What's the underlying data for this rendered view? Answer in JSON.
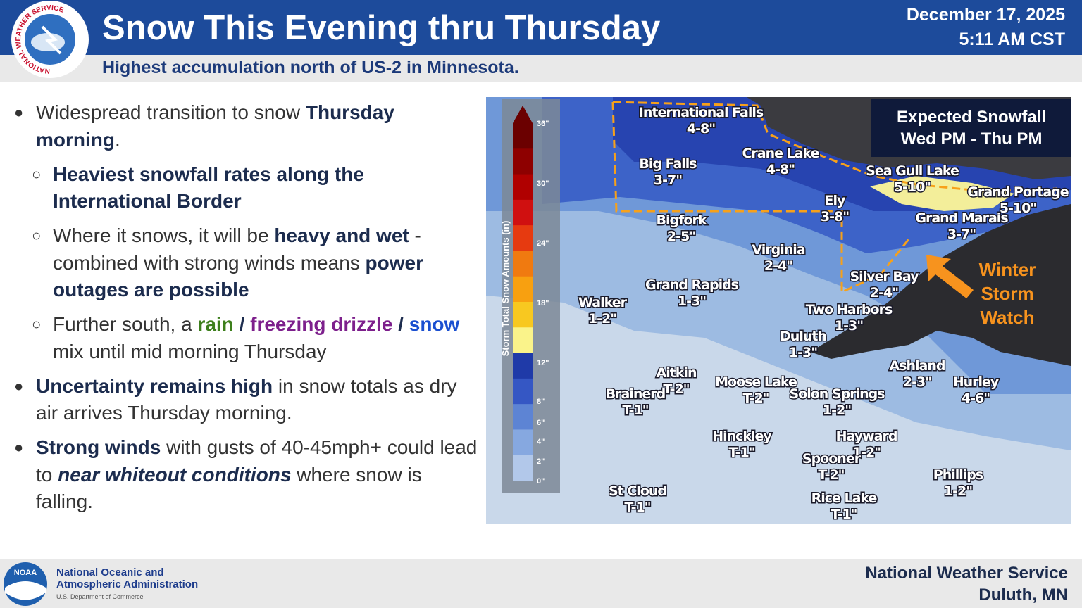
{
  "header": {
    "title": "Snow This Evening thru Thursday",
    "subtitle": "Highest accumulation north of US-2 in Minnesota.",
    "date": "December 17, 2025",
    "time": "5:11 AM CST",
    "logo_text": "NATIONAL WEATHER SERVICE"
  },
  "bullets": [
    {
      "level": 1,
      "segments": [
        {
          "text": "Widespread transition to snow ",
          "style": "normal"
        },
        {
          "text": "Thursday morning",
          "style": "bold"
        },
        {
          "text": ".",
          "style": "normal"
        }
      ]
    },
    {
      "level": 2,
      "segments": [
        {
          "text": "Heaviest snowfall rates along the International Border",
          "style": "bold"
        }
      ]
    },
    {
      "level": 2,
      "segments": [
        {
          "text": "Where it snows, it will be ",
          "style": "normal"
        },
        {
          "text": "heavy and wet",
          "style": "bold"
        },
        {
          "text": " - combined with strong winds means ",
          "style": "normal"
        },
        {
          "text": "power outages are possible",
          "style": "bold"
        }
      ]
    },
    {
      "level": 2,
      "segments": [
        {
          "text": "Further south, a ",
          "style": "normal"
        },
        {
          "text": "rain",
          "style": "bold",
          "color": "#3d7f1c"
        },
        {
          "text": " / ",
          "style": "bold"
        },
        {
          "text": "freezing drizzle",
          "style": "bold",
          "color": "#7d1f8c"
        },
        {
          "text": " / ",
          "style": "bold"
        },
        {
          "text": "snow",
          "style": "bold",
          "color": "#1a4fd0"
        },
        {
          "text": " mix until mid morning Thursday",
          "style": "normal"
        }
      ]
    },
    {
      "level": 1,
      "segments": [
        {
          "text": "Uncertainty remains high",
          "style": "bold"
        },
        {
          "text": " in snow totals as dry air arrives Thursday morning.",
          "style": "normal"
        }
      ]
    },
    {
      "level": 1,
      "segments": [
        {
          "text": "Strong winds",
          "style": "bold"
        },
        {
          "text": " with gusts of 40-45mph+ could lead to ",
          "style": "normal"
        },
        {
          "text": "near whiteout conditions",
          "style": "bold-italic"
        },
        {
          "text": " where snow is falling.",
          "style": "normal"
        }
      ]
    }
  ],
  "map": {
    "legend": [
      "Expected Snowfall",
      "Wed PM - Thu PM"
    ],
    "colorbar": {
      "label": "Storm Total Snow Amounts (in)",
      "ticks": [
        "36\"",
        "30\"",
        "24\"",
        "18\"",
        "12\"",
        "8\"",
        "6\"",
        "4\"",
        "2\"",
        "0\""
      ]
    },
    "watch": [
      "Winter",
      "Storm",
      "Watch"
    ],
    "places": [
      {
        "name": "International Falls",
        "amount": "4-8\""
      },
      {
        "name": "Big Falls",
        "amount": "3-7\""
      },
      {
        "name": "Crane Lake",
        "amount": "4-8\""
      },
      {
        "name": "Sea Gull Lake",
        "amount": "5-10\""
      },
      {
        "name": "Grand Portage",
        "amount": "5-10\""
      },
      {
        "name": "Ely",
        "amount": "3-8\""
      },
      {
        "name": "Grand Marais",
        "amount": "3-7\""
      },
      {
        "name": "Bigfork",
        "amount": "2-5\""
      },
      {
        "name": "Virginia",
        "amount": "2-4\""
      },
      {
        "name": "Silver Bay",
        "amount": "2-4\""
      },
      {
        "name": "Grand Rapids",
        "amount": "1-3\""
      },
      {
        "name": "Walker",
        "amount": "1-2\""
      },
      {
        "name": "Two Harbors",
        "amount": "1-3\""
      },
      {
        "name": "Duluth",
        "amount": "1-3\""
      },
      {
        "name": "Ashland",
        "amount": "2-3\""
      },
      {
        "name": "Aitkin",
        "amount": "T-2\""
      },
      {
        "name": "Moose Lake",
        "amount": "T-2\""
      },
      {
        "name": "Solon Springs",
        "amount": "1-2\""
      },
      {
        "name": "Hurley",
        "amount": "4-6\""
      },
      {
        "name": "Brainerd",
        "amount": "T-1\""
      },
      {
        "name": "Hinckley",
        "amount": "T-1\""
      },
      {
        "name": "Hayward",
        "amount": "1-2\""
      },
      {
        "name": "Spooner",
        "amount": "T-2\""
      },
      {
        "name": "Phillips",
        "amount": "1-2\""
      },
      {
        "name": "St Cloud",
        "amount": "T-1\""
      },
      {
        "name": "Rice Lake",
        "amount": "T-1\""
      }
    ]
  },
  "footer": {
    "agency": [
      "National Oceanic and",
      "Atmospheric Administration"
    ],
    "department": "U.S. Department of Commerce",
    "noaa": "NOAA",
    "office": [
      "National Weather Service",
      "Duluth, MN"
    ]
  }
}
